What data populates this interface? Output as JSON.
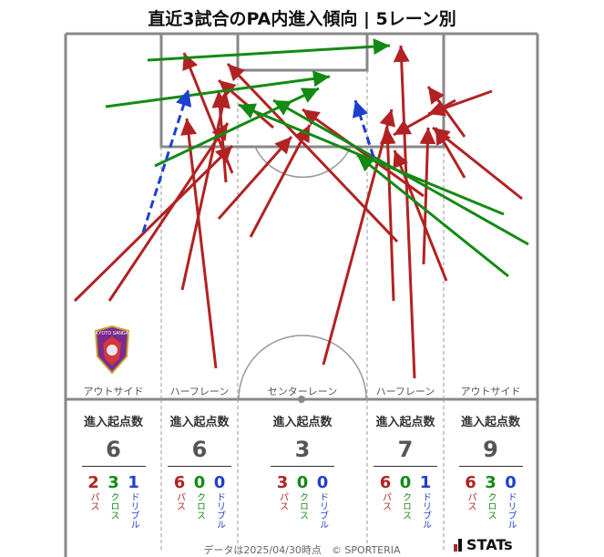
{
  "title": "直近3試合のPA内進入傾向 | 5レーン別",
  "lanes": [
    {
      "label": "アウトサイド",
      "total": "6",
      "pass": "2",
      "cross": "3",
      "dribble": "1"
    },
    {
      "label": "ハーフレーン",
      "total": "6",
      "pass": "6",
      "cross": "0",
      "dribble": "0"
    },
    {
      "label": "センターレーン",
      "total": "3",
      "pass": "3",
      "cross": "0",
      "dribble": "0"
    },
    {
      "label": "ハーフレーン",
      "total": "7",
      "pass": "6",
      "cross": "0",
      "dribble": "1"
    },
    {
      "label": "アウトサイド",
      "total": "9",
      "pass": "6",
      "cross": "3",
      "dribble": "0"
    }
  ],
  "stat_header": "進入起点数",
  "legend": {
    "pass": "パス",
    "cross": "クロス",
    "dribble": "ドリブル"
  },
  "colors": {
    "pass": "#b22222",
    "cross": "#138a13",
    "dribble": "#1e3fd0"
  },
  "emblem_text": "KYOTO SANGA",
  "footer": "データは2025/04/30時点　© SPORTERIA",
  "brand": "STATs"
}
